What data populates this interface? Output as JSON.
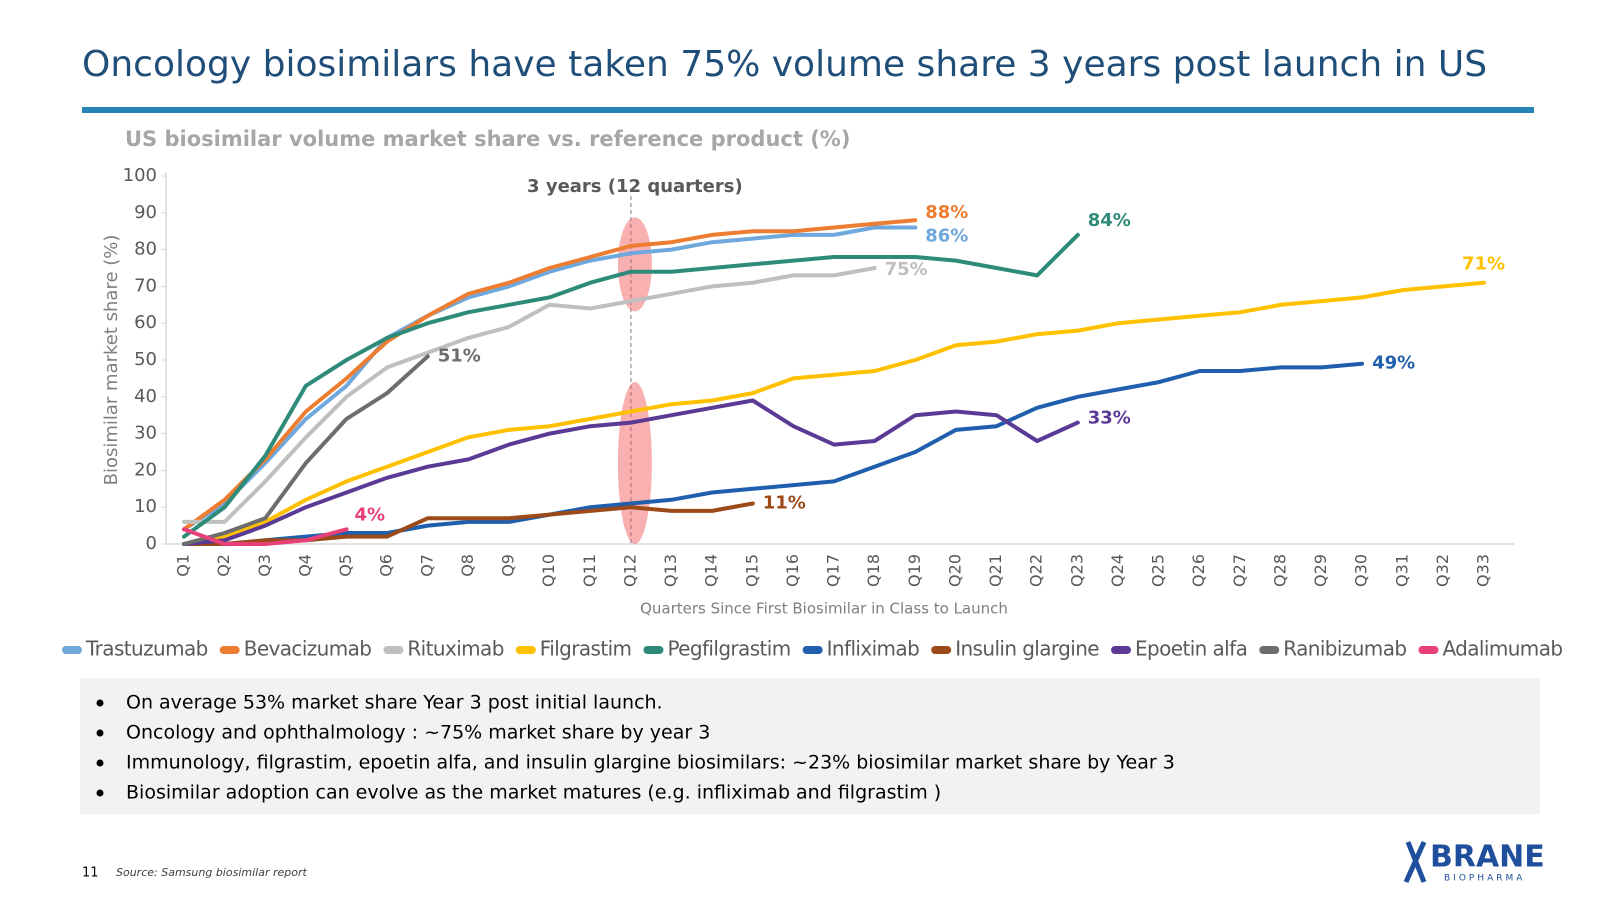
{
  "title": "Oncology biosimilars have taken 75% volume share 3 years post launch in US",
  "chart_data": {
    "type": "line",
    "title": "US biosimilar volume market share vs. reference product (%)",
    "x_label": "Quarters Since First Biosimilar in Class to Launch",
    "y_label": "Biosimilar market share (%)",
    "annotation": "3 years (12 quarters)",
    "categories": [
      "Q1",
      "Q2",
      "Q3",
      "Q4",
      "Q5",
      "Q6",
      "Q7",
      "Q8",
      "Q9",
      "Q10",
      "Q11",
      "Q12",
      "Q13",
      "Q14",
      "Q15",
      "Q16",
      "Q17",
      "Q18",
      "Q19",
      "Q20",
      "Q21",
      "Q22",
      "Q23",
      "Q24",
      "Q25",
      "Q26",
      "Q27",
      "Q28",
      "Q29",
      "Q30",
      "Q31",
      "Q32",
      "Q33"
    ],
    "ylim": [
      0,
      100
    ],
    "yticks": [
      0,
      10,
      20,
      30,
      40,
      50,
      60,
      70,
      80,
      90,
      100
    ],
    "grid": false,
    "legend": "bottom",
    "series": [
      {
        "name": "Trastuzumab",
        "color": "#6fa8dc",
        "values": [
          4,
          11,
          22,
          34,
          43,
          56,
          62,
          67,
          70,
          74,
          77,
          79,
          80,
          82,
          83,
          84,
          84,
          86,
          86,
          null,
          null,
          null,
          null,
          null,
          null,
          null,
          null,
          null,
          null,
          null,
          null,
          null,
          null
        ],
        "value_labels": [
          null,
          null,
          null,
          null,
          null,
          null,
          null,
          null,
          null,
          null,
          null,
          null,
          null,
          null,
          null,
          null,
          null,
          null,
          "86%",
          null,
          null,
          null,
          null,
          null,
          null,
          null,
          null,
          null,
          null,
          null,
          null,
          null,
          null
        ]
      },
      {
        "name": "Bevacizumab",
        "color": "#ed7d31",
        "values": [
          4,
          12,
          23,
          36,
          45,
          55,
          62,
          68,
          71,
          75,
          78,
          81,
          82,
          84,
          85,
          85,
          86,
          87,
          88,
          null,
          null,
          null,
          null,
          null,
          null,
          null,
          null,
          null,
          null,
          null,
          null,
          null,
          null
        ],
        "value_labels": [
          null,
          null,
          null,
          null,
          null,
          null,
          null,
          null,
          null,
          null,
          null,
          null,
          null,
          null,
          null,
          null,
          null,
          null,
          "88%",
          null,
          null,
          null,
          null,
          null,
          null,
          null,
          null,
          null,
          null,
          null,
          null,
          null,
          null
        ]
      },
      {
        "name": "Rituximab",
        "color": "#bfbfbf",
        "values": [
          6,
          6,
          17,
          29,
          40,
          48,
          52,
          56,
          59,
          65,
          64,
          66,
          68,
          70,
          71,
          73,
          73,
          75,
          null,
          null,
          null,
          null,
          null,
          null,
          null,
          null,
          null,
          null,
          null,
          null,
          null,
          null,
          null
        ],
        "value_labels": [
          null,
          null,
          null,
          null,
          null,
          null,
          null,
          null,
          null,
          null,
          null,
          null,
          null,
          null,
          null,
          null,
          null,
          "75%",
          null,
          null,
          null,
          null,
          null,
          null,
          null,
          null,
          null,
          null,
          null,
          null,
          null,
          null,
          null
        ]
      },
      {
        "name": "Filgrastim",
        "color": "#ffc000",
        "values": [
          0,
          2,
          6,
          12,
          17,
          21,
          25,
          29,
          31,
          32,
          34,
          36,
          38,
          39,
          41,
          45,
          46,
          47,
          50,
          54,
          55,
          57,
          58,
          60,
          61,
          62,
          63,
          65,
          66,
          67,
          69,
          70,
          71
        ],
        "value_labels": [
          null,
          null,
          null,
          null,
          null,
          null,
          null,
          null,
          null,
          null,
          null,
          null,
          null,
          null,
          null,
          null,
          null,
          null,
          null,
          null,
          null,
          null,
          null,
          null,
          null,
          null,
          null,
          null,
          null,
          null,
          null,
          null,
          "71%"
        ]
      },
      {
        "name": "Pegfilgrastim",
        "color": "#2e8b7a",
        "values": [
          2,
          10,
          24,
          43,
          50,
          56,
          60,
          63,
          65,
          67,
          71,
          74,
          74,
          75,
          76,
          77,
          78,
          78,
          78,
          77,
          75,
          73,
          84,
          null,
          null,
          null,
          null,
          null,
          null,
          null,
          null,
          null,
          null
        ],
        "value_labels": [
          null,
          null,
          null,
          null,
          null,
          null,
          null,
          null,
          null,
          null,
          null,
          null,
          null,
          null,
          null,
          null,
          null,
          null,
          null,
          null,
          null,
          null,
          "84%",
          null,
          null,
          null,
          null,
          null,
          null,
          null,
          null,
          null,
          null
        ]
      },
      {
        "name": "Infliximab",
        "color": "#1f5fae",
        "values": [
          0,
          0,
          1,
          2,
          3,
          3,
          5,
          6,
          6,
          8,
          10,
          11,
          12,
          14,
          15,
          16,
          17,
          21,
          25,
          31,
          32,
          37,
          40,
          42,
          44,
          47,
          47,
          48,
          48,
          49,
          null,
          null,
          null
        ],
        "value_labels": [
          null,
          null,
          null,
          null,
          null,
          null,
          null,
          null,
          null,
          null,
          null,
          null,
          null,
          null,
          null,
          null,
          null,
          null,
          null,
          null,
          null,
          null,
          null,
          null,
          null,
          null,
          null,
          null,
          null,
          "49%",
          null,
          null,
          null
        ]
      },
      {
        "name": "Insulin glargine",
        "color": "#9c4a1a",
        "values": [
          0,
          0,
          1,
          1,
          2,
          2,
          7,
          7,
          7,
          8,
          9,
          10,
          9,
          9,
          11,
          null,
          null,
          null,
          null,
          null,
          null,
          null,
          null,
          null,
          null,
          null,
          null,
          null,
          null,
          null,
          null,
          null,
          null
        ],
        "value_labels": [
          null,
          null,
          null,
          null,
          null,
          null,
          null,
          null,
          null,
          null,
          null,
          null,
          null,
          null,
          "11%",
          null,
          null,
          null,
          null,
          null,
          null,
          null,
          null,
          null,
          null,
          null,
          null,
          null,
          null,
          null,
          null,
          null,
          null
        ]
      },
      {
        "name": "Epoetin alfa",
        "color": "#5b3a96",
        "values": [
          0,
          1,
          5,
          10,
          14,
          18,
          21,
          23,
          27,
          30,
          32,
          33,
          35,
          37,
          39,
          32,
          27,
          28,
          35,
          36,
          35,
          28,
          33,
          null,
          null,
          null,
          null,
          null,
          null,
          null,
          null,
          null,
          null
        ],
        "value_labels": [
          null,
          null,
          null,
          null,
          null,
          null,
          null,
          null,
          null,
          null,
          null,
          null,
          null,
          null,
          null,
          null,
          null,
          null,
          null,
          null,
          null,
          null,
          "33%",
          null,
          null,
          null,
          null,
          null,
          null,
          null,
          null,
          null,
          null
        ]
      },
      {
        "name": "Ranibizumab",
        "color": "#6d6d6d",
        "values": [
          0,
          3,
          7,
          22,
          34,
          41,
          51,
          null,
          null,
          null,
          null,
          null,
          null,
          null,
          null,
          null,
          null,
          null,
          null,
          null,
          null,
          null,
          null,
          null,
          null,
          null,
          null,
          null,
          null,
          null,
          null,
          null,
          null
        ],
        "value_labels": [
          null,
          null,
          null,
          null,
          null,
          null,
          "51%",
          null,
          null,
          null,
          null,
          null,
          null,
          null,
          null,
          null,
          null,
          null,
          null,
          null,
          null,
          null,
          null,
          null,
          null,
          null,
          null,
          null,
          null,
          null,
          null,
          null,
          null
        ]
      },
      {
        "name": "Adalimumab",
        "color": "#e8417a",
        "values": [
          4,
          0,
          0,
          1,
          4,
          null,
          null,
          null,
          null,
          null,
          null,
          null,
          null,
          null,
          null,
          null,
          null,
          null,
          null,
          null,
          null,
          null,
          null,
          null,
          null,
          null,
          null,
          null,
          null,
          null,
          null,
          null,
          null
        ],
        "value_labels": [
          null,
          null,
          null,
          null,
          "4%",
          null,
          null,
          null,
          null,
          null,
          null,
          null,
          null,
          null,
          null,
          null,
          null,
          null,
          null,
          null,
          null,
          null,
          null,
          null,
          null,
          null,
          null,
          null,
          null,
          null,
          null,
          null,
          null
        ]
      }
    ]
  },
  "bullets": [
    "On average 53% market share Year 3 post initial launch.",
    "Oncology and ophthalmology : ~75% market share by year 3",
    "Immunology, filgrastim, epoetin alfa, and insulin glargine biosimilars: ~23% biosimilar market share by Year 3",
    "Biosimilar adoption can evolve as the market matures (e.g. infliximab and filgrastim )"
  ],
  "footer": {
    "page": "11",
    "source": "Source: Samsung biosimilar report"
  },
  "logo": {
    "name": "BRANE",
    "subtitle": "BIOPHARMA"
  }
}
